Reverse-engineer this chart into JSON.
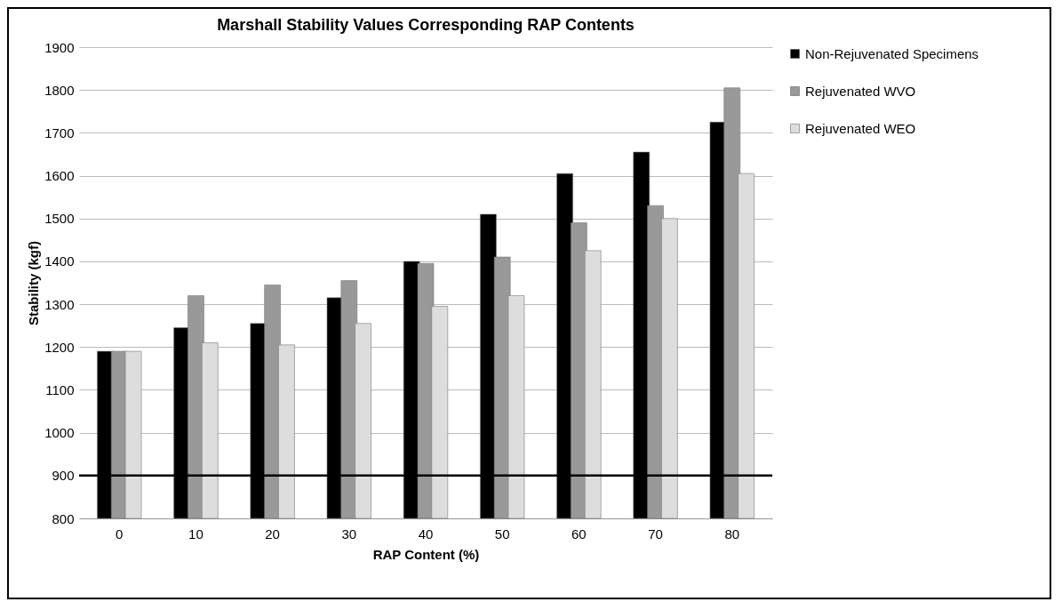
{
  "chart_data": {
    "type": "bar",
    "title": "Marshall Stability Values Corresponding RAP Contents",
    "xlabel": "RAP Content (%)",
    "ylabel": "Stability (kgf)",
    "categories": [
      "0",
      "10",
      "20",
      "30",
      "40",
      "50",
      "60",
      "70",
      "80"
    ],
    "series": [
      {
        "name": "Non-Rejuvenated Specimens",
        "color": "#000000",
        "values": [
          1190,
          1245,
          1255,
          1315,
          1400,
          1510,
          1605,
          1655,
          1725
        ]
      },
      {
        "name": "Rejuvenated WVO",
        "color": "#999999",
        "values": [
          1190,
          1320,
          1345,
          1355,
          1395,
          1410,
          1490,
          1530,
          1805
        ]
      },
      {
        "name": "Rejuvenated WEO",
        "color": "#dddddd",
        "values": [
          1190,
          1210,
          1205,
          1255,
          1295,
          1320,
          1425,
          1500,
          1605
        ]
      }
    ],
    "ylim": [
      800,
      1900
    ],
    "yticks": [
      800,
      900,
      1000,
      1100,
      1200,
      1300,
      1400,
      1500,
      1600,
      1700,
      1800,
      1900
    ],
    "grid": "y",
    "legend": "right",
    "ref_lines": [
      {
        "axis": "y",
        "value": 900,
        "color": "#000000"
      }
    ]
  }
}
